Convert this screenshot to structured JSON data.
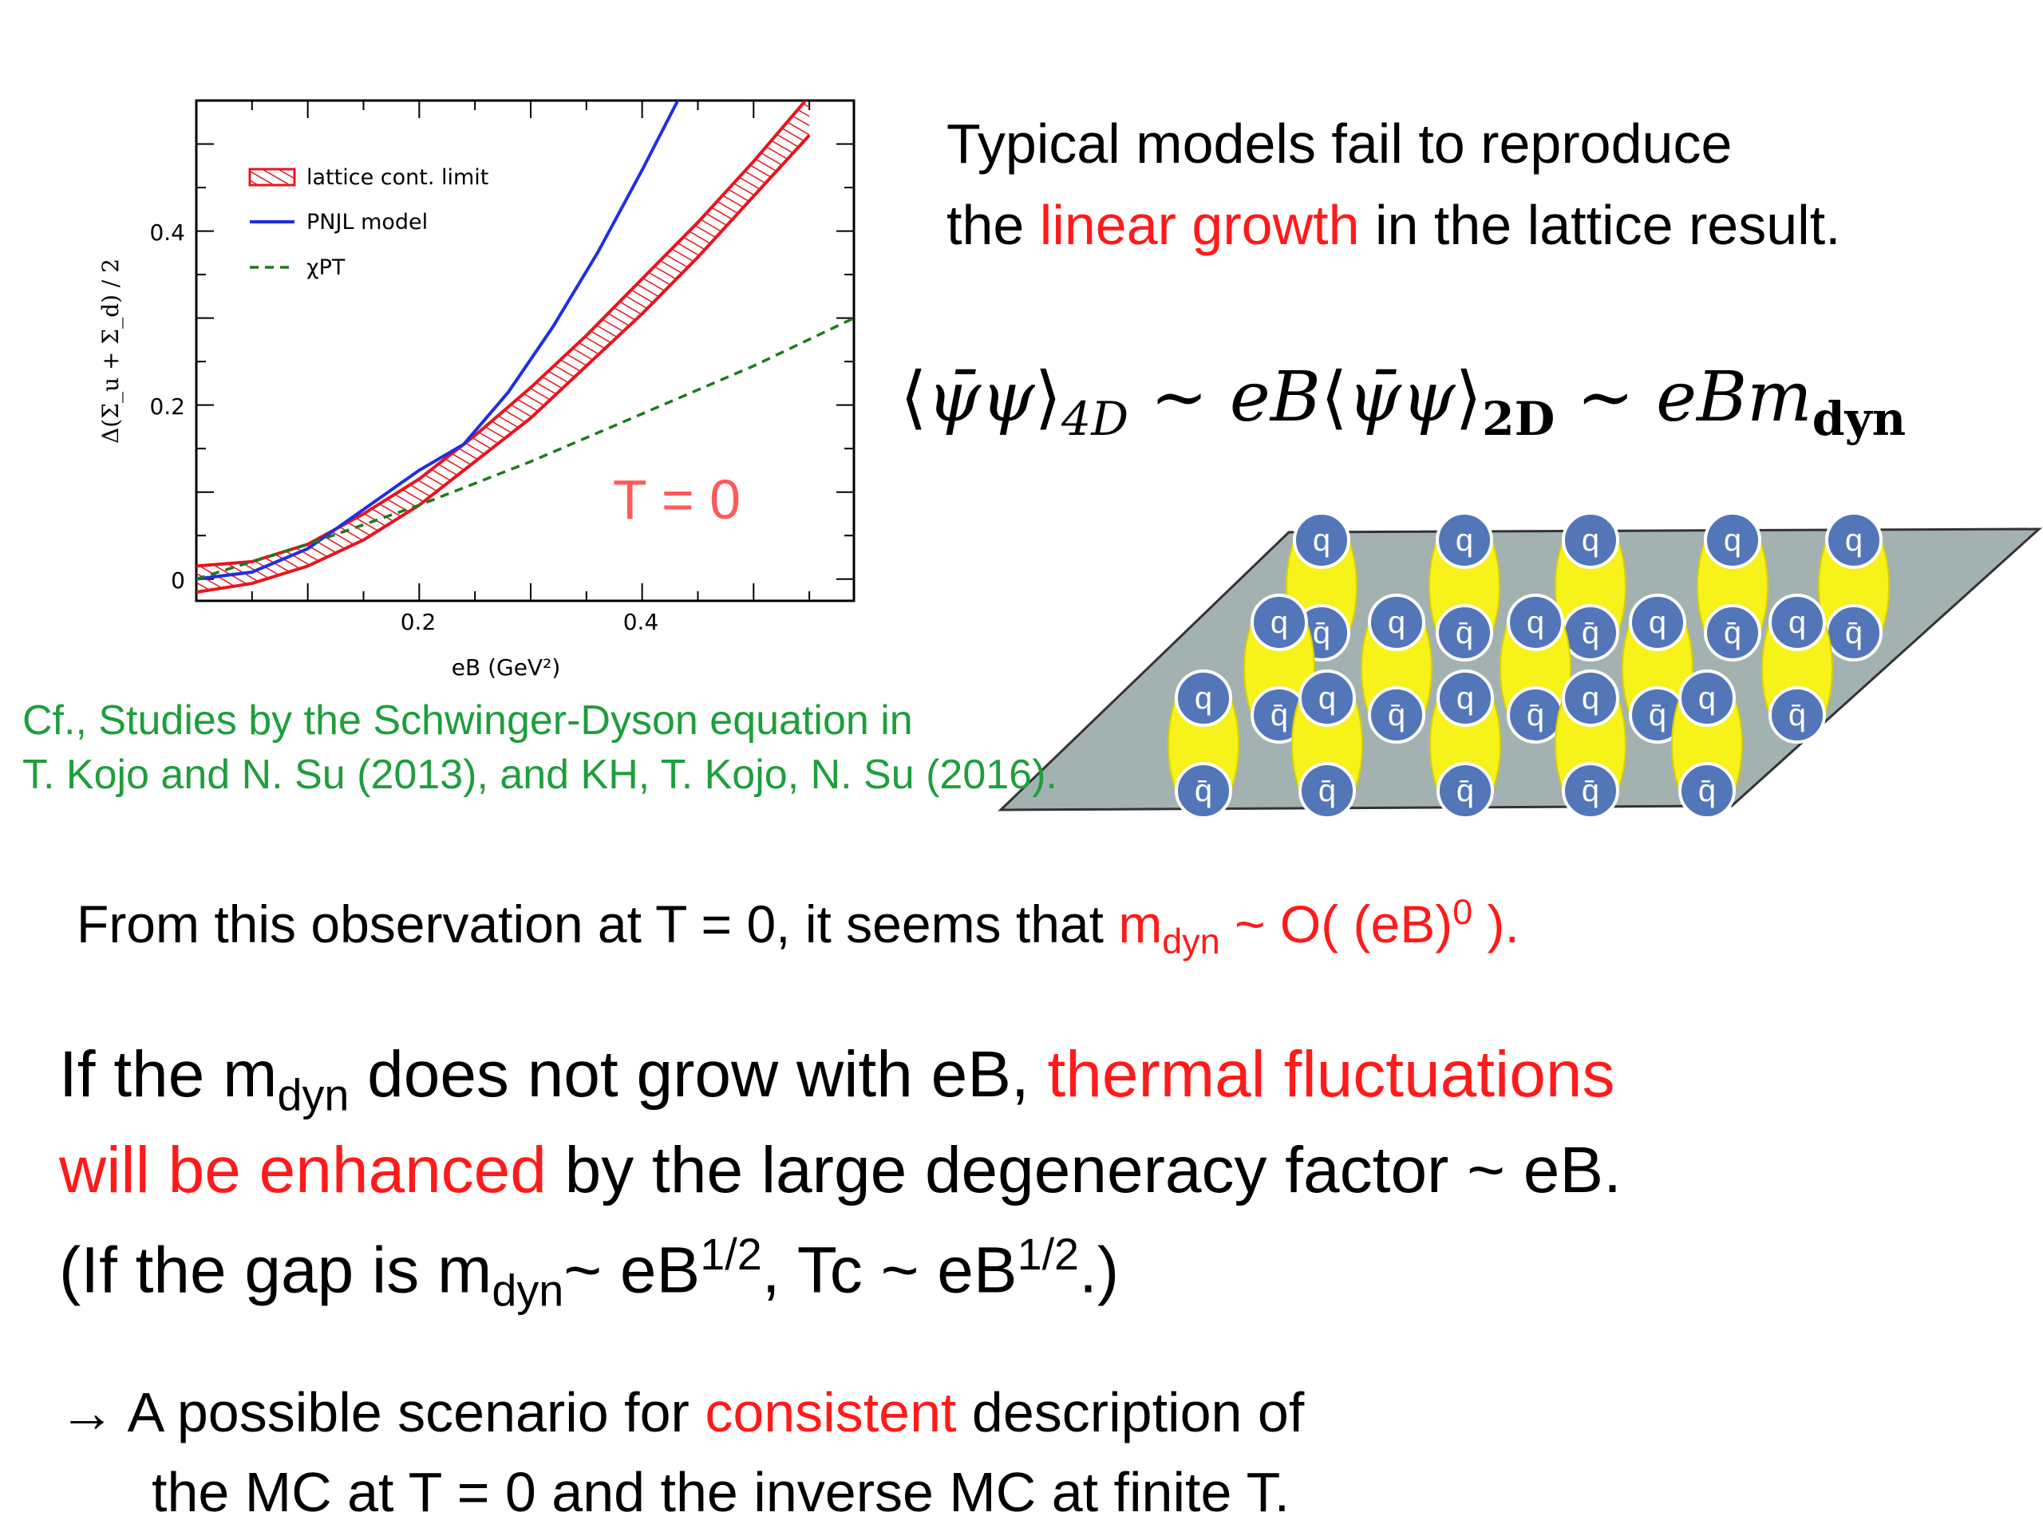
{
  "chart_data": {
    "type": "line",
    "xlabel": "eB (GeV²)",
    "ylabel": "Δ(Σ_u + Σ_d) / 2",
    "xlim": [
      0,
      0.59
    ],
    "ylim": [
      -0.025,
      0.55
    ],
    "xticks": [
      0.2,
      0.4
    ],
    "xtick_labels": [
      "0.2",
      "0.4"
    ],
    "yticks": [
      0,
      0.2,
      0.4
    ],
    "ytick_labels": [
      "0",
      "0.2",
      "0.4"
    ],
    "annotation": "T = 0",
    "legend_position": "top-left",
    "series": [
      {
        "name": "lattice cont. limit",
        "style": "band",
        "color": "#e8141e",
        "x": [
          0,
          0.05,
          0.1,
          0.15,
          0.2,
          0.25,
          0.3,
          0.35,
          0.4,
          0.45,
          0.5,
          0.55
        ],
        "lower": [
          -0.015,
          -0.005,
          0.015,
          0.045,
          0.085,
          0.135,
          0.185,
          0.245,
          0.305,
          0.37,
          0.44,
          0.51
        ],
        "upper": [
          0.015,
          0.02,
          0.04,
          0.075,
          0.115,
          0.165,
          0.22,
          0.28,
          0.345,
          0.41,
          0.48,
          0.555
        ]
      },
      {
        "name": "PNJL model",
        "style": "solid",
        "color": "#1f2fe0",
        "x": [
          0,
          0.05,
          0.1,
          0.15,
          0.2,
          0.24,
          0.28,
          0.32,
          0.36,
          0.4,
          0.44
        ],
        "y": [
          0,
          0.008,
          0.035,
          0.08,
          0.125,
          0.155,
          0.215,
          0.29,
          0.375,
          0.47,
          0.57
        ]
      },
      {
        "name": "χPT",
        "style": "dashed",
        "color": "#1c7a1c",
        "x": [
          0,
          0.1,
          0.2,
          0.3,
          0.4,
          0.5,
          0.59
        ],
        "y": [
          0,
          0.04,
          0.085,
          0.135,
          0.19,
          0.245,
          0.3
        ]
      }
    ]
  },
  "text": {
    "intro_line1": "Typical models fail to reproduce",
    "intro_line2_pre": "the ",
    "intro_line2_red": "linear growth",
    "intro_line2_post": " in the lattice result.",
    "cite_line1": "Cf., Studies by the Schwinger-Dyson equation in",
    "cite_line2": "T. Kojo and N. Su (2013), and KH, T. Kojo, N. Su (2016).",
    "obs_pre": "From this observation at T = 0, it seems that ",
    "obs_m": "m",
    "obs_sub": "dyn",
    "obs_mid": " ~ O( (eB)",
    "obs_sup": "0",
    "obs_post": " ).",
    "if_pre": "If the m",
    "if_sub": "dyn",
    "if_mid": " does not grow with eB, ",
    "if_red": "thermal fluctuations",
    "enh_red": "will be enhanced",
    "enh_post": " by the large degeneracy factor ~ eB.",
    "gap_pre": "(If the gap is m",
    "gap_sub": "dyn",
    "gap_mid": "~ eB",
    "gap_sup1": "1/2",
    "gap_mid2": ", Tc ~ eB",
    "gap_sup2": "1/2",
    "gap_post": ".)",
    "arrow": "→",
    "scen_pre": " A possible scenario for ",
    "scen_red": "consistent",
    "scen_post": " description of",
    "scen_line2": "the MC at T = 0 and the inverse MC at finite T."
  },
  "formula": {
    "lhs_sub": "4D",
    "mid": "eB",
    "mid_sub": "2D",
    "rhs": "eBm",
    "rhs_sub": "dyn",
    "sim": "~"
  },
  "diagram": {
    "quark_label": "q",
    "antiquark_label": "q̄",
    "colors": {
      "plane": "#a3b2b0",
      "ellipse": "#f7f21a",
      "quark": "#5276b8"
    }
  }
}
